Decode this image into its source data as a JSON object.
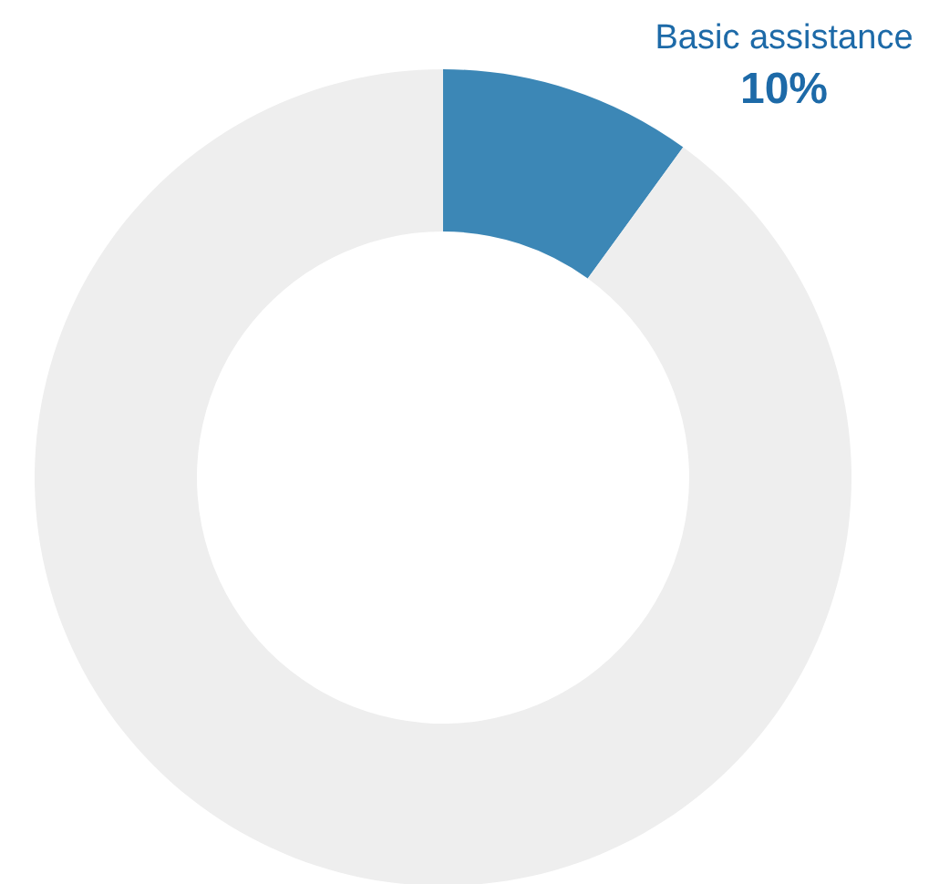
{
  "chart_data": {
    "type": "donut",
    "categories": [
      "Basic assistance",
      null
    ],
    "values": [
      10,
      90
    ],
    "colors": [
      "#3c87b6",
      "#eeeeee"
    ],
    "value_labels": [
      "10%",
      null
    ]
  }
}
